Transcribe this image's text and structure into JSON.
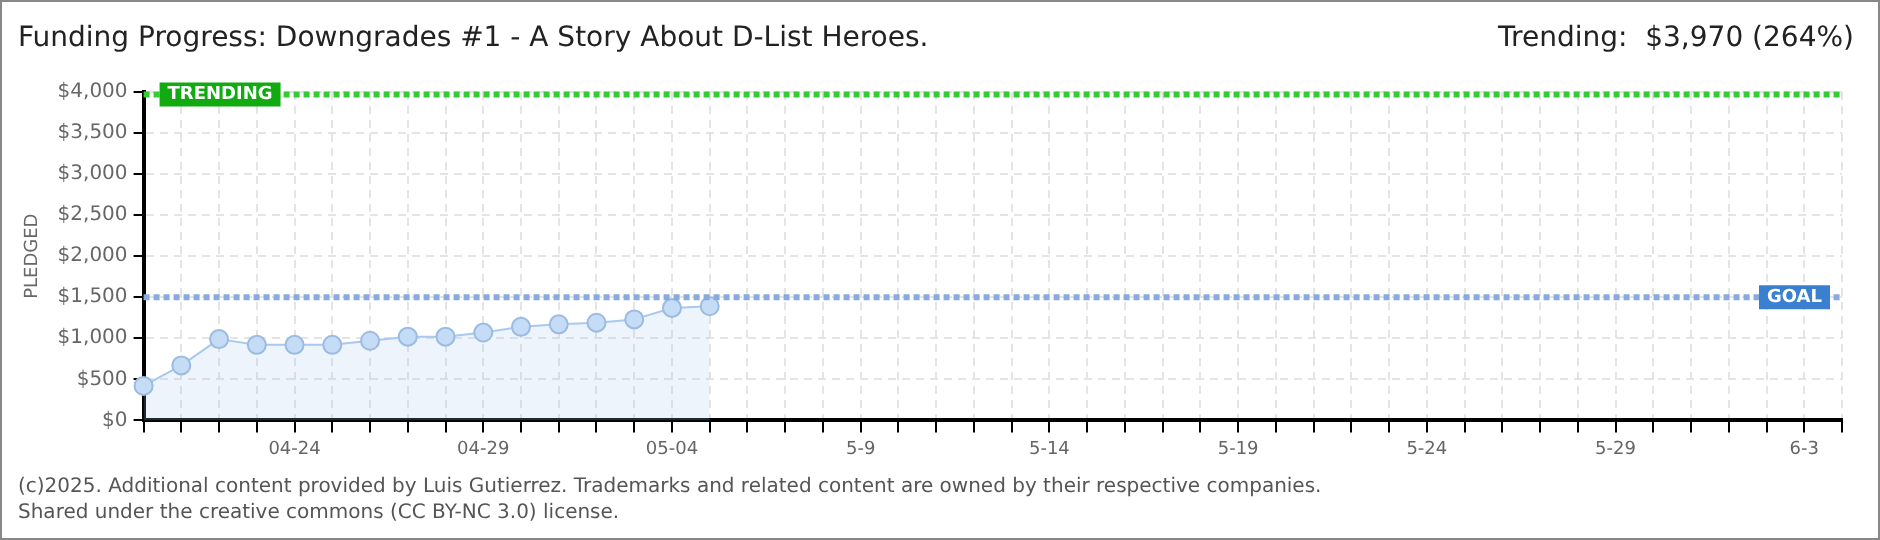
{
  "chart_data": {
    "type": "area",
    "title": "Funding Progress: Downgrades #1 - A Story About D-List Heroes.",
    "subtitle": "Trending:  $3,970 (264%)",
    "ylabel": "PLEDGED",
    "categories": [
      null,
      null,
      null,
      null,
      "04-24",
      null,
      null,
      null,
      null,
      "04-29",
      null,
      null,
      null,
      null,
      "05-04",
      null,
      null,
      null,
      null,
      "5-9",
      null,
      null,
      null,
      null,
      "5-14",
      null,
      null,
      null,
      null,
      "5-19",
      null,
      null,
      null,
      null,
      "5-24",
      null,
      null,
      null,
      null,
      "5-29",
      null,
      null,
      null,
      null,
      "6-3",
      null
    ],
    "series": [
      {
        "color": "#a9c8f0",
        "values": [
          420,
          670,
          990,
          920,
          920,
          920,
          970,
          1020,
          1020,
          1070,
          1140,
          1170,
          1190,
          1230,
          1370,
          1390,
          null,
          null,
          null,
          null,
          null,
          null,
          null,
          null,
          null,
          null,
          null,
          null,
          null,
          null,
          null,
          null,
          null,
          null,
          null,
          null,
          null,
          null,
          null,
          null,
          null,
          null,
          null,
          null,
          null,
          null
        ]
      }
    ],
    "ylim": [
      0,
      4000
    ],
    "yticks": [
      {
        "value": 0,
        "label": "$0"
      },
      {
        "value": 500,
        "label": "$500"
      },
      {
        "value": 1000,
        "label": "$1,000"
      },
      {
        "value": 1500,
        "label": "$1,500"
      },
      {
        "value": 2000,
        "label": "$2,000"
      },
      {
        "value": 2500,
        "label": "$2,500"
      },
      {
        "value": 3000,
        "label": "$3,000"
      },
      {
        "value": 3500,
        "label": "$3,500"
      },
      {
        "value": 4000,
        "label": "$4,000"
      }
    ],
    "ref_lines": [
      {
        "axis": "y",
        "value": 3970,
        "label": "TRENDING",
        "color": "#33cc33",
        "line_style": "dashed"
      },
      {
        "axis": "y",
        "value": 1500,
        "label": "GOAL",
        "color": "#88aadd",
        "line_style": "dashed"
      }
    ],
    "grid": true,
    "marker": "circle",
    "legend": false,
    "annotations": [
      "(c)2025. Additional content provided by Luis Gutierrez. Trademarks and related content are owned by their respective companies.",
      "Shared under the creative commons (CC BY-NC 3.0) license."
    ]
  }
}
